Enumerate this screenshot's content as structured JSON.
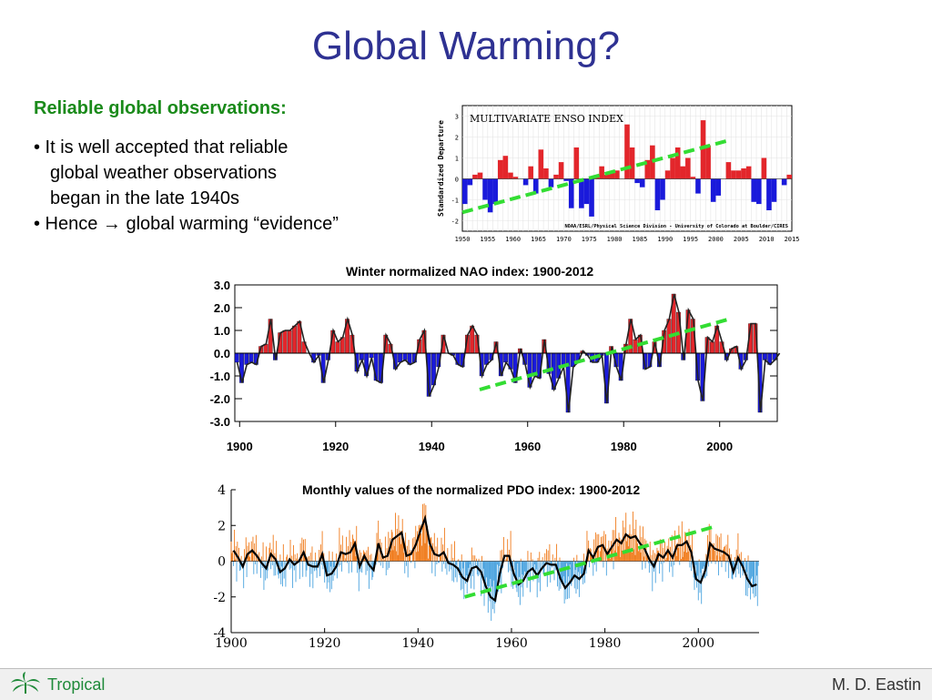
{
  "title": "Global Warming?",
  "heading": "Reliable global observations:",
  "bullets": [
    "• It is well accepted that reliable",
    "global weather observations",
    "began in the late 1940s",
    "• Hence → global warming “evidence”"
  ],
  "footer": {
    "left": "Tropical",
    "right": "M. D. Eastin"
  },
  "colors": {
    "title": "#2e3192",
    "heading": "#1a8a1a",
    "trend": "#33dd33",
    "positive_red": "#e3262b",
    "negative_blue": "#1a1adb",
    "pdo_orange": "#f07a1a",
    "pdo_blue": "#4aa3df"
  },
  "chart_data": [
    {
      "type": "bar",
      "title": "MULTIVARIATE ENSO INDEX",
      "ylabel": "Standardized Departure",
      "xlim": [
        1950,
        2015
      ],
      "ylim": [
        -2.5,
        3.5
      ],
      "yticks": [
        -2,
        -1,
        0,
        1,
        2,
        3
      ],
      "xticks": [
        1950,
        1955,
        1960,
        1965,
        1970,
        1975,
        1980,
        1985,
        1990,
        1995,
        2000,
        2005,
        2010,
        2015
      ],
      "credit": "NOAA/ESRL/Physical Science Division - University of Colorado at Boulder/CIRES",
      "x": [
        1950,
        1951,
        1952,
        1953,
        1954,
        1955,
        1956,
        1957,
        1958,
        1959,
        1960,
        1961,
        1962,
        1963,
        1964,
        1965,
        1966,
        1967,
        1968,
        1969,
        1970,
        1971,
        1972,
        1973,
        1974,
        1975,
        1976,
        1977,
        1978,
        1979,
        1980,
        1981,
        1982,
        1983,
        1984,
        1985,
        1986,
        1987,
        1988,
        1989,
        1990,
        1991,
        1992,
        1993,
        1994,
        1995,
        1996,
        1997,
        1998,
        1999,
        2000,
        2001,
        2002,
        2003,
        2004,
        2005,
        2006,
        2007,
        2008,
        2009,
        2010,
        2011,
        2012,
        2013,
        2014
      ],
      "values": [
        -1.2,
        -0.3,
        0.2,
        0.3,
        -1.0,
        -1.6,
        -1.2,
        0.9,
        1.1,
        0.3,
        0.1,
        0.0,
        -0.3,
        0.6,
        -0.7,
        1.4,
        0.5,
        -0.4,
        0.2,
        0.8,
        -0.1,
        -1.4,
        1.5,
        -1.4,
        -1.2,
        -1.8,
        0.1,
        0.6,
        0.2,
        0.3,
        0.4,
        0.0,
        2.6,
        1.5,
        -0.2,
        -0.4,
        0.9,
        1.6,
        -1.5,
        -1.0,
        0.4,
        1.0,
        1.5,
        0.6,
        1.0,
        0.1,
        -0.7,
        2.8,
        1.6,
        -1.1,
        -0.8,
        0.0,
        0.8,
        0.4,
        0.4,
        0.5,
        0.6,
        -1.1,
        -1.2,
        1.0,
        -1.5,
        -1.1,
        0.0,
        -0.3,
        0.2
      ],
      "trend": {
        "x": [
          1950,
          2002
        ],
        "y": [
          -1.6,
          1.8
        ]
      }
    },
    {
      "type": "bar",
      "title": "Winter normalized NAO index: 1900-2012",
      "xlim": [
        1899,
        2012
      ],
      "ylim": [
        -3.0,
        3.0
      ],
      "yticks": [
        "3.0",
        "2.0",
        "1.0",
        "0.0",
        "-1.0",
        "-2.0",
        "-3.0"
      ],
      "xticks": [
        1900,
        1920,
        1940,
        1960,
        1980,
        2000
      ],
      "x_start": 1899,
      "values": [
        -0.4,
        -1.3,
        -0.5,
        -0.4,
        -0.5,
        0.3,
        0.4,
        1.5,
        -0.3,
        0.9,
        1.0,
        1.0,
        1.2,
        1.4,
        0.5,
        0.0,
        -0.4,
        -0.1,
        -1.3,
        -0.3,
        1.0,
        0.5,
        0.7,
        1.5,
        0.8,
        -0.8,
        -0.3,
        -1.0,
        -0.2,
        -1.2,
        -1.3,
        0.8,
        0.4,
        -0.7,
        -0.4,
        -0.3,
        -0.5,
        -0.4,
        0.6,
        1.0,
        -1.9,
        -1.4,
        -0.6,
        0.8,
        0.0,
        -0.1,
        -0.5,
        -0.6,
        0.8,
        1.2,
        0.8,
        -1.0,
        -0.5,
        -0.3,
        0.5,
        -1.0,
        -0.4,
        -0.7,
        -1.3,
        0.2,
        -0.5,
        -1.5,
        -1.0,
        -1.1,
        0.6,
        -0.9,
        -1.6,
        -1.1,
        -0.6,
        -2.6,
        -0.6,
        -0.4,
        0.1,
        -0.1,
        -0.4,
        -0.4,
        -0.1,
        -2.2,
        0.3,
        -0.6,
        -1.2,
        0.4,
        1.5,
        0.6,
        0.8,
        -0.7,
        -0.6,
        0.5,
        -0.6,
        1.0,
        1.5,
        2.6,
        1.8,
        -0.3,
        1.9,
        1.5,
        -1.2,
        -2.1,
        0.7,
        0.5,
        1.2,
        0.5,
        -0.3,
        0.2,
        0.3,
        -0.7,
        -0.3,
        1.3,
        1.3,
        -2.6,
        -0.3,
        -0.5,
        -0.3,
        0.0
      ],
      "trend": {
        "x": [
          1950,
          2002
        ],
        "y": [
          -1.6,
          1.5
        ]
      }
    },
    {
      "type": "line",
      "title": "Monthly values of the normalized PDO index: 1900-2012",
      "xlim": [
        1900,
        2013
      ],
      "ylim": [
        -4,
        4
      ],
      "yticks": [
        4,
        2,
        0,
        -2,
        -4
      ],
      "xticks": [
        1900,
        1920,
        1940,
        1960,
        1980,
        2000
      ],
      "x_start": 1900,
      "annual_mean": [
        0.6,
        0.2,
        -0.3,
        0.4,
        0.6,
        0.3,
        -0.1,
        -0.4,
        0.4,
        0.1,
        -0.6,
        -0.4,
        0.1,
        -0.2,
        0.0,
        0.5,
        -0.2,
        -0.3,
        -0.3,
        0.4,
        -0.8,
        -0.7,
        -0.3,
        0.5,
        0.4,
        0.5,
        1.0,
        -0.3,
        0.3,
        -0.2,
        -0.5,
        1.0,
        0.2,
        0.3,
        1.2,
        1.4,
        1.6,
        0.3,
        0.4,
        0.9,
        1.7,
        2.4,
        1.0,
        0.4,
        0.3,
        0.5,
        -0.1,
        -0.2,
        -0.4,
        -0.9,
        -1.1,
        -0.4,
        -0.3,
        -0.6,
        -1.4,
        -2.0,
        -2.2,
        -0.7,
        0.3,
        0.3,
        -0.7,
        -1.3,
        -1.1,
        -0.6,
        -0.4,
        -0.8,
        -0.4,
        -0.1,
        -0.2,
        -0.2,
        -1.0,
        -1.5,
        -1.2,
        -0.8,
        -1.0,
        -0.7,
        0.6,
        0.2,
        0.8,
        0.9,
        0.4,
        0.8,
        1.2,
        1.0,
        1.5,
        1.3,
        1.4,
        1.0,
        0.7,
        0.1,
        -0.3,
        0.4,
        0.2,
        0.6,
        0.2,
        0.9,
        0.9,
        1.1,
        0.5,
        -1.0,
        -1.2,
        -0.5,
        1.0,
        0.7,
        0.6,
        0.5,
        0.3,
        -0.6,
        0.2,
        -0.3,
        -1.0,
        -1.4,
        -1.3
      ],
      "trend": {
        "x": [
          1950,
          2003
        ],
        "y": [
          -2.0,
          1.9
        ]
      }
    }
  ]
}
